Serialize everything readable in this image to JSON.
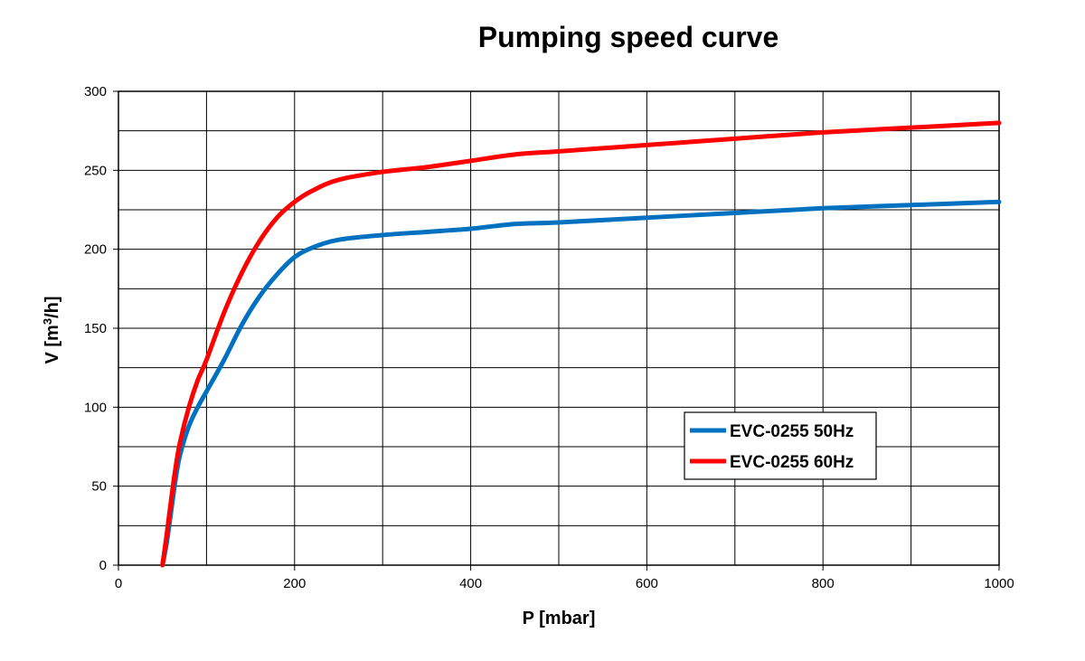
{
  "chart_data": {
    "type": "line",
    "title": "Pumping speed curve",
    "xlabel": "P [mbar]",
    "ylabel_main": "V [m",
    "ylabel_sup": "3",
    "ylabel_end": "/h]",
    "xlim": [
      0,
      1000
    ],
    "ylim": [
      0,
      300
    ],
    "x_ticks": [
      0,
      200,
      400,
      600,
      800,
      1000
    ],
    "y_ticks": [
      0,
      50,
      100,
      150,
      200,
      250,
      300
    ],
    "x_grid_step": 100,
    "y_grid_step": 25,
    "grid": true,
    "legend_position": "lower-right",
    "series": [
      {
        "name": "EVC-0255 50Hz",
        "color": "#0070C0",
        "points": [
          [
            50,
            0
          ],
          [
            55,
            15
          ],
          [
            60,
            35
          ],
          [
            65,
            55
          ],
          [
            70,
            70
          ],
          [
            80,
            88
          ],
          [
            90,
            100
          ],
          [
            100,
            110
          ],
          [
            120,
            130
          ],
          [
            140,
            152
          ],
          [
            160,
            170
          ],
          [
            180,
            184
          ],
          [
            200,
            195
          ],
          [
            220,
            201
          ],
          [
            250,
            206
          ],
          [
            300,
            209
          ],
          [
            350,
            211
          ],
          [
            400,
            213
          ],
          [
            450,
            216
          ],
          [
            500,
            217
          ],
          [
            600,
            220
          ],
          [
            700,
            223
          ],
          [
            800,
            226
          ],
          [
            900,
            228
          ],
          [
            1000,
            230
          ]
        ]
      },
      {
        "name": "EVC-0255 60Hz",
        "color": "#FF0000",
        "points": [
          [
            50,
            0
          ],
          [
            55,
            20
          ],
          [
            60,
            42
          ],
          [
            65,
            62
          ],
          [
            70,
            78
          ],
          [
            80,
            100
          ],
          [
            90,
            117
          ],
          [
            100,
            130
          ],
          [
            120,
            160
          ],
          [
            140,
            185
          ],
          [
            160,
            205
          ],
          [
            180,
            220
          ],
          [
            200,
            230
          ],
          [
            220,
            237
          ],
          [
            250,
            244
          ],
          [
            300,
            249
          ],
          [
            350,
            252
          ],
          [
            400,
            256
          ],
          [
            450,
            260
          ],
          [
            500,
            262
          ],
          [
            600,
            266
          ],
          [
            700,
            270
          ],
          [
            800,
            274
          ],
          [
            900,
            277
          ],
          [
            1000,
            280
          ]
        ]
      }
    ]
  }
}
